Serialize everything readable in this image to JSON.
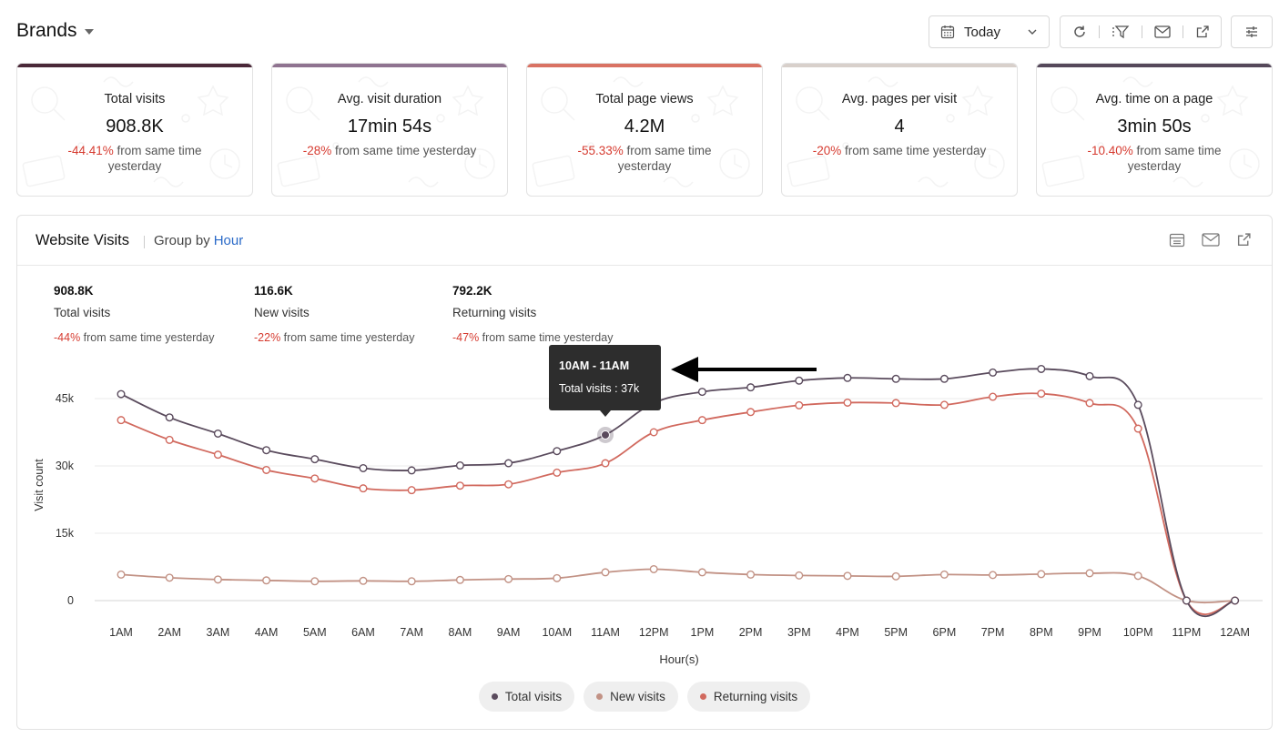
{
  "header": {
    "title": "Brands",
    "date_range": "Today"
  },
  "kpis": [
    {
      "title": "Total visits",
      "value": "908.8K",
      "change": "-44.41%",
      "suffix": "from same time yesterday",
      "accent": "#4a2838"
    },
    {
      "title": "Avg. visit duration",
      "value": "17min 54s",
      "change": "-28%",
      "suffix": "from same time yesterday",
      "accent": "#8f7390"
    },
    {
      "title": "Total page views",
      "value": "4.2M",
      "change": "-55.33%",
      "suffix": "from same time yesterday",
      "accent": "#d97263"
    },
    {
      "title": "Avg. pages per visit",
      "value": "4",
      "change": "-20%",
      "suffix": "from same time yesterday",
      "accent": "#d8d0cb"
    },
    {
      "title": "Avg. time on a page",
      "value": "3min 50s",
      "change": "-10.40%",
      "suffix": "from same time yesterday",
      "accent": "#55485a"
    }
  ],
  "chart_card": {
    "title": "Website Visits",
    "group_by_label": "Group by",
    "group_by_value": "Hour",
    "summaries": [
      {
        "value": "908.8K",
        "label": "Total visits",
        "change": "-44%",
        "suffix": "from same time yesterday"
      },
      {
        "value": "116.6K",
        "label": "New visits",
        "change": "-22%",
        "suffix": "from same time yesterday"
      },
      {
        "value": "792.2K",
        "label": "Returning visits",
        "change": "-47%",
        "suffix": "from same time yesterday"
      }
    ],
    "tooltip": {
      "title": "10AM - 11AM",
      "text": "Total visits : 37k"
    }
  },
  "chart_data": {
    "type": "line",
    "xlabel": "Hour(s)",
    "ylabel": "Visit count",
    "ylim": [
      0,
      45000
    ],
    "yticks": [
      0,
      15000,
      30000,
      45000
    ],
    "ytick_labels": [
      "0",
      "15k",
      "30k",
      "45k"
    ],
    "grid": true,
    "legend_position": "bottom",
    "categories": [
      "1AM",
      "2AM",
      "3AM",
      "4AM",
      "5AM",
      "6AM",
      "7AM",
      "8AM",
      "9AM",
      "10AM",
      "11AM",
      "12PM",
      "1PM",
      "2PM",
      "3PM",
      "4PM",
      "5PM",
      "6PM",
      "7PM",
      "8PM",
      "9PM",
      "10PM",
      "11PM",
      "12AM"
    ],
    "series": [
      {
        "name": "Total visits",
        "color": "#5a4b5d",
        "values": [
          46000,
          40800,
          37200,
          33500,
          31500,
          29500,
          29000,
          30100,
          30600,
          33300,
          36900,
          44000,
          46500,
          47500,
          49000,
          49600,
          49400,
          49400,
          50800,
          51600,
          50000,
          43600,
          0,
          0
        ]
      },
      {
        "name": "New visits",
        "color": "#c29285",
        "values": [
          5800,
          5100,
          4700,
          4500,
          4300,
          4400,
          4300,
          4600,
          4800,
          5000,
          6300,
          7000,
          6300,
          5800,
          5600,
          5500,
          5400,
          5800,
          5700,
          5900,
          6100,
          5500,
          0,
          0
        ]
      },
      {
        "name": "Returning visits",
        "color": "#d1695e",
        "values": [
          40200,
          35800,
          32500,
          29100,
          27200,
          25000,
          24600,
          25600,
          25900,
          28500,
          30600,
          37500,
          40200,
          42000,
          43500,
          44100,
          44000,
          43600,
          45400,
          46100,
          44000,
          38300,
          0,
          0
        ]
      }
    ],
    "highlight": {
      "series": "Total visits",
      "index": 10
    }
  }
}
